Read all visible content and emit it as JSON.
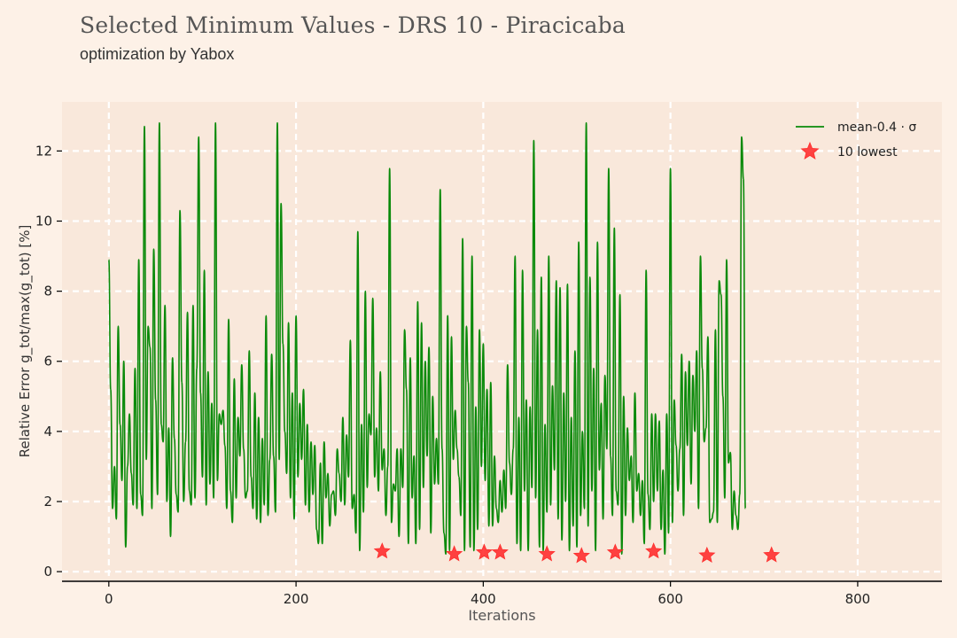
{
  "header": {
    "title": "Selected Minimum Values - DRS 10 - Piracicaba",
    "subtitle": "optimization by Yabox"
  },
  "colors": {
    "background": "#fdf1e7",
    "plot_area": "#f9e8db",
    "grid": "#ffffff",
    "line": "#0a8a0a",
    "marker": "#ff3030"
  },
  "chart_data": {
    "type": "line",
    "title": "Selected Minimum Values - DRS 10 - Piracicaba",
    "subtitle": "optimization by Yabox",
    "xlabel": "Iterations",
    "ylabel": "Relative Error g_tot/max(g_tot) [%]",
    "xlim": [
      -50,
      890
    ],
    "ylim": [
      -0.25,
      13.4
    ],
    "x_ticks": [
      0,
      200,
      400,
      600,
      800
    ],
    "y_ticks": [
      0,
      2,
      4,
      6,
      8,
      10,
      12
    ],
    "grid": true,
    "grid_style": "dashed",
    "legend_position": "top-right",
    "series": [
      {
        "name": "mean-0.4 · σ",
        "kind": "line",
        "color": "#0a8a0a",
        "x_start": 0,
        "x_step": 2,
        "values": [
          8.9,
          5.2,
          1.8,
          3.0,
          1.5,
          7.0,
          4.2,
          2.6,
          6.0,
          0.7,
          3.0,
          4.5,
          2.8,
          1.9,
          5.8,
          1.8,
          8.9,
          2.2,
          1.6,
          12.7,
          3.2,
          7.0,
          6.4,
          1.8,
          9.2,
          4.9,
          2.2,
          12.8,
          4.2,
          3.7,
          7.6,
          2.0,
          4.1,
          1.0,
          6.1,
          3.8,
          2.2,
          1.7,
          10.3,
          5.4,
          2.0,
          3.7,
          7.4,
          2.3,
          1.9,
          7.6,
          2.1,
          5.8,
          12.4,
          5.1,
          2.7,
          8.6,
          1.9,
          5.7,
          2.5,
          4.8,
          2.1,
          12.8,
          2.6,
          4.5,
          4.2,
          4.6,
          3.6,
          1.8,
          7.2,
          2.3,
          1.4,
          5.5,
          2.1,
          4.4,
          3.3,
          5.9,
          3.5,
          2.1,
          2.3,
          6.3,
          2.7,
          1.8,
          5.1,
          1.5,
          4.4,
          1.4,
          3.8,
          1.9,
          7.3,
          1.6,
          3.2,
          6.2,
          3.3,
          1.7,
          12.8,
          3.2,
          10.5,
          6.5,
          4.0,
          2.8,
          7.1,
          2.1,
          5.1,
          1.5,
          7.3,
          2.7,
          4.8,
          3.2,
          5.2,
          1.9,
          4.2,
          1.7,
          3.7,
          2.2,
          3.6,
          1.2,
          0.8,
          3.1,
          0.8,
          3.7,
          2.1,
          2.8,
          1.3,
          2.2,
          2.3,
          1.6,
          3.5,
          2.8,
          2.0,
          4.4,
          1.9,
          3.9,
          2.7,
          6.6,
          1.8,
          2.2,
          1.1,
          9.7,
          0.6,
          4.2,
          1.7,
          8.0,
          2.4,
          4.5,
          3.9,
          7.8,
          2.7,
          4.1,
          2.3,
          5.7,
          2.9,
          3.5,
          1.6,
          3.0,
          11.5,
          1.4,
          2.5,
          2.3,
          3.5,
          1.0,
          3.5,
          2.4,
          6.9,
          5.2,
          0.8,
          6.1,
          2.1,
          3.3,
          0.8,
          7.7,
          1.2,
          7.1,
          2.4,
          6.0,
          3.3,
          6.4,
          1.1,
          5.0,
          2.5,
          3.8,
          2.5,
          10.9,
          3.5,
          1.1,
          0.5,
          7.3,
          0.6,
          6.7,
          3.2,
          4.6,
          3.5,
          2.7,
          1.6,
          9.5,
          0.6,
          7.0,
          5.4,
          0.7,
          9.0,
          0.6,
          4.7,
          1.2,
          6.9,
          3.0,
          6.5,
          2.6,
          5.2,
          1.3,
          5.4,
          1.3,
          3.3,
          1.8,
          1.4,
          2.6,
          1.7,
          2.9,
          1.8,
          5.9,
          3.1,
          2.2,
          3.5,
          9.0,
          0.8,
          4.4,
          0.6,
          8.6,
          2.3,
          4.9,
          0.6,
          4.7,
          2.4,
          12.3,
          2.1,
          6.9,
          0.7,
          8.4,
          0.6,
          4.2,
          1.7,
          9.0,
          1.9,
          5.3,
          2.9,
          8.3,
          1.5,
          8.1,
          0.9,
          5.1,
          2.0,
          8.2,
          0.6,
          4.4,
          1.3,
          6.3,
          0.7,
          9.4,
          1.6,
          4.0,
          1.8,
          12.8,
          1.3,
          8.4,
          2.3,
          5.8,
          0.6,
          9.4,
          2.9,
          4.8,
          1.5,
          5.6,
          3.5,
          11.5,
          3.3,
          1.6,
          9.8,
          2.3,
          1.9,
          7.9,
          0.5,
          5.0,
          1.6,
          4.1,
          2.6,
          3.3,
          1.4,
          5.1,
          2.3,
          2.8,
          1.6,
          2.6,
          0.8,
          8.6,
          2.2,
          1.2,
          4.5,
          2.0,
          4.5,
          2.3,
          4.3,
          1.2,
          2.9,
          0.5,
          4.5,
          1.1,
          11.5,
          1.4,
          4.9,
          3.6,
          2.3,
          3.5,
          6.2,
          1.6,
          5.7,
          3.6,
          6.0,
          2.5,
          5.6,
          4.0,
          6.3,
          1.8,
          9.0,
          5.8,
          3.7,
          4.1,
          6.7,
          1.4,
          1.5,
          1.7,
          6.9,
          1.4,
          8.3,
          7.9,
          5.0,
          2.1,
          8.9,
          3.1,
          3.4,
          1.2,
          2.3,
          1.6,
          1.2,
          2.2,
          12.4,
          11.2,
          1.8
        ]
      },
      {
        "name": "10 lowest",
        "kind": "scatter",
        "color": "#ff3030",
        "marker": "star",
        "x": [
          292,
          369,
          401,
          418,
          468,
          505,
          541,
          582,
          639,
          708
        ],
        "y": [
          0.58,
          0.5,
          0.55,
          0.55,
          0.5,
          0.45,
          0.55,
          0.58,
          0.46,
          0.47
        ]
      }
    ]
  }
}
